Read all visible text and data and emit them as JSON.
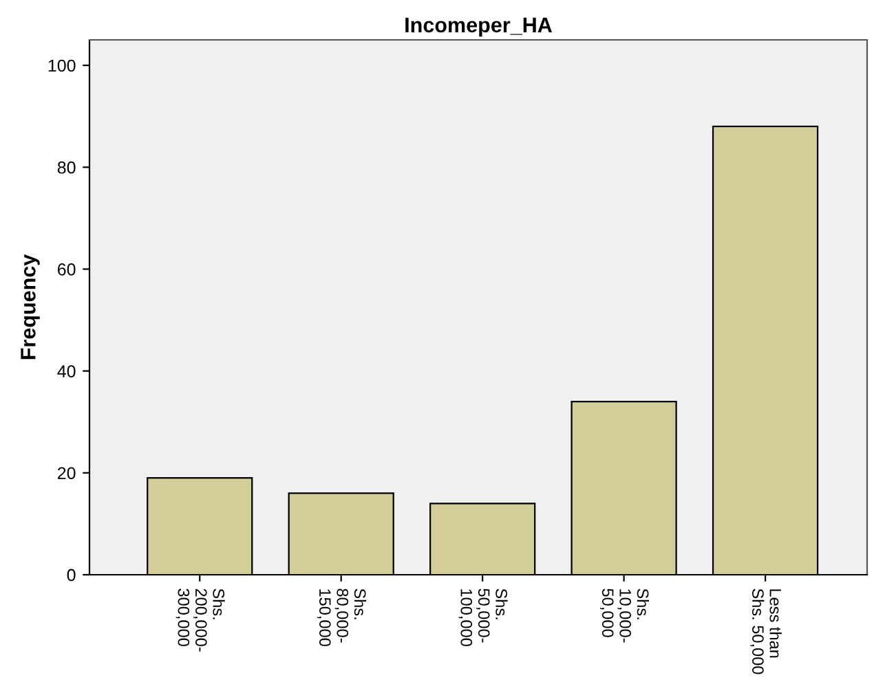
{
  "chart_data": {
    "type": "bar",
    "title": "Incomeper_HA",
    "ylabel": "Frequency",
    "categories": [
      "Shs.\n200,000-\n300,000",
      "Shs.\n80,000-\n150,000",
      "Shs.\n50,000-\n100,000",
      "Shs.\n10,000-\n50,000",
      "Less than\nShs. 50,000"
    ],
    "values": [
      19,
      16,
      14,
      34,
      88
    ],
    "color": "#d3ce97",
    "ylim": [
      0,
      105
    ],
    "yticks": [
      0,
      20,
      40,
      60,
      80,
      100
    ],
    "grid": false,
    "legend": false
  }
}
